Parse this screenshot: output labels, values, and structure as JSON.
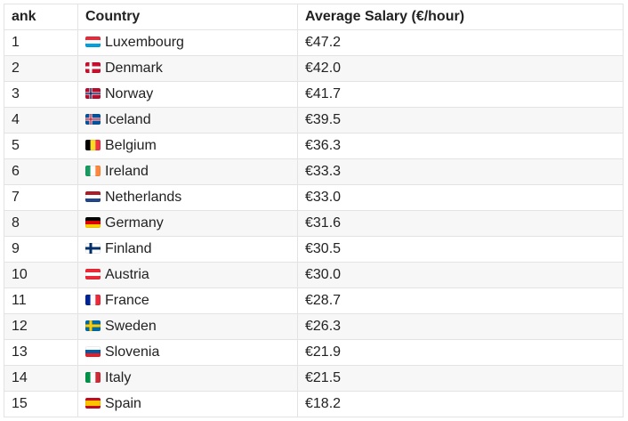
{
  "table": {
    "header": [
      "ank",
      "Country",
      "Average Salary (€/hour)"
    ],
    "rows": [
      [
        "1",
        "Luxembourg",
        "€47.2"
      ],
      [
        "2",
        "Denmark",
        "€42.0"
      ],
      [
        "3",
        "Norway",
        "€41.7"
      ],
      [
        "4",
        "Iceland",
        "€39.5"
      ],
      [
        "5",
        "Belgium",
        "€36.3"
      ],
      [
        "6",
        "Ireland",
        "€33.3"
      ],
      [
        "7",
        "Netherlands",
        "€33.0"
      ],
      [
        "8",
        "Germany",
        "€31.6"
      ],
      [
        "9",
        "Finland",
        "€30.5"
      ],
      [
        "10",
        "Austria",
        "€30.0"
      ],
      [
        "11",
        "France",
        "€28.7"
      ],
      [
        "12",
        "Sweden",
        "€26.3"
      ],
      [
        "13",
        "Slovenia",
        "€21.9"
      ],
      [
        "14",
        "Italy",
        "€21.5"
      ],
      [
        "15",
        "Spain",
        "€18.2"
      ]
    ]
  }
}
